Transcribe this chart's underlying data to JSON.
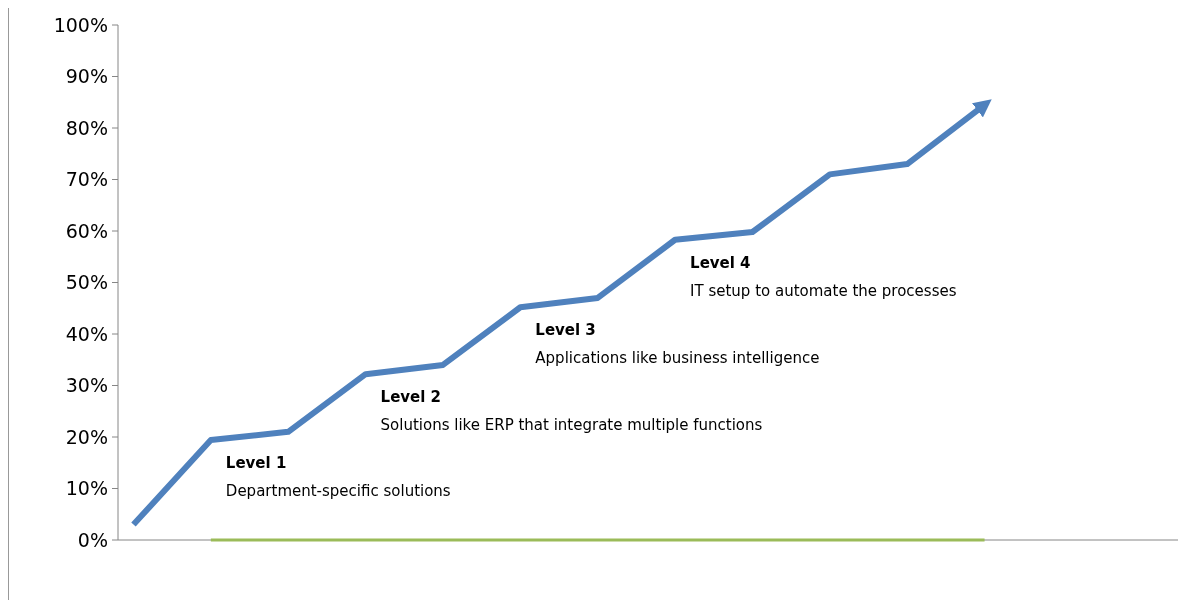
{
  "chart_data": {
    "type": "line",
    "categories": [
      null,
      null,
      null,
      null,
      null,
      null,
      null,
      null,
      null,
      null,
      null,
      null
    ],
    "series": [
      {
        "color": "#4f81bd",
        "values": [
          0.03,
          0.194,
          0.21,
          0.322,
          0.34,
          0.452,
          0.47,
          0.583,
          0.598,
          0.71,
          0.73,
          0.845
        ]
      },
      {
        "color": "#9bbb59",
        "values": [
          null,
          0,
          0,
          0,
          0,
          0,
          0,
          0,
          0,
          0,
          0,
          0
        ]
      }
    ],
    "ylim": [
      0,
      1
    ],
    "yticks": [
      {
        "value": 0,
        "label": "0%"
      },
      {
        "value": 0.1,
        "label": "10%"
      },
      {
        "value": 0.2,
        "label": "20%"
      },
      {
        "value": 0.3,
        "label": "30%"
      },
      {
        "value": 0.4,
        "label": "40%"
      },
      {
        "value": 0.5,
        "label": "50%"
      },
      {
        "value": 0.6,
        "label": "60%"
      },
      {
        "value": 0.7,
        "label": "70%"
      },
      {
        "value": 0.8,
        "label": "80%"
      },
      {
        "value": 0.9,
        "label": "90%"
      },
      {
        "value": 1,
        "label": "100%"
      }
    ],
    "tick_labels": "y",
    "grid": false,
    "marker": "none",
    "line_style": "solid",
    "annotations": [
      "Level 1",
      "Department-specific solutions",
      "Level 2",
      "Solutions like ERP that integrate multiple functions",
      "Level 3",
      "Applications like business intelligence",
      "Level 4",
      "IT setup to automate the processes"
    ]
  }
}
